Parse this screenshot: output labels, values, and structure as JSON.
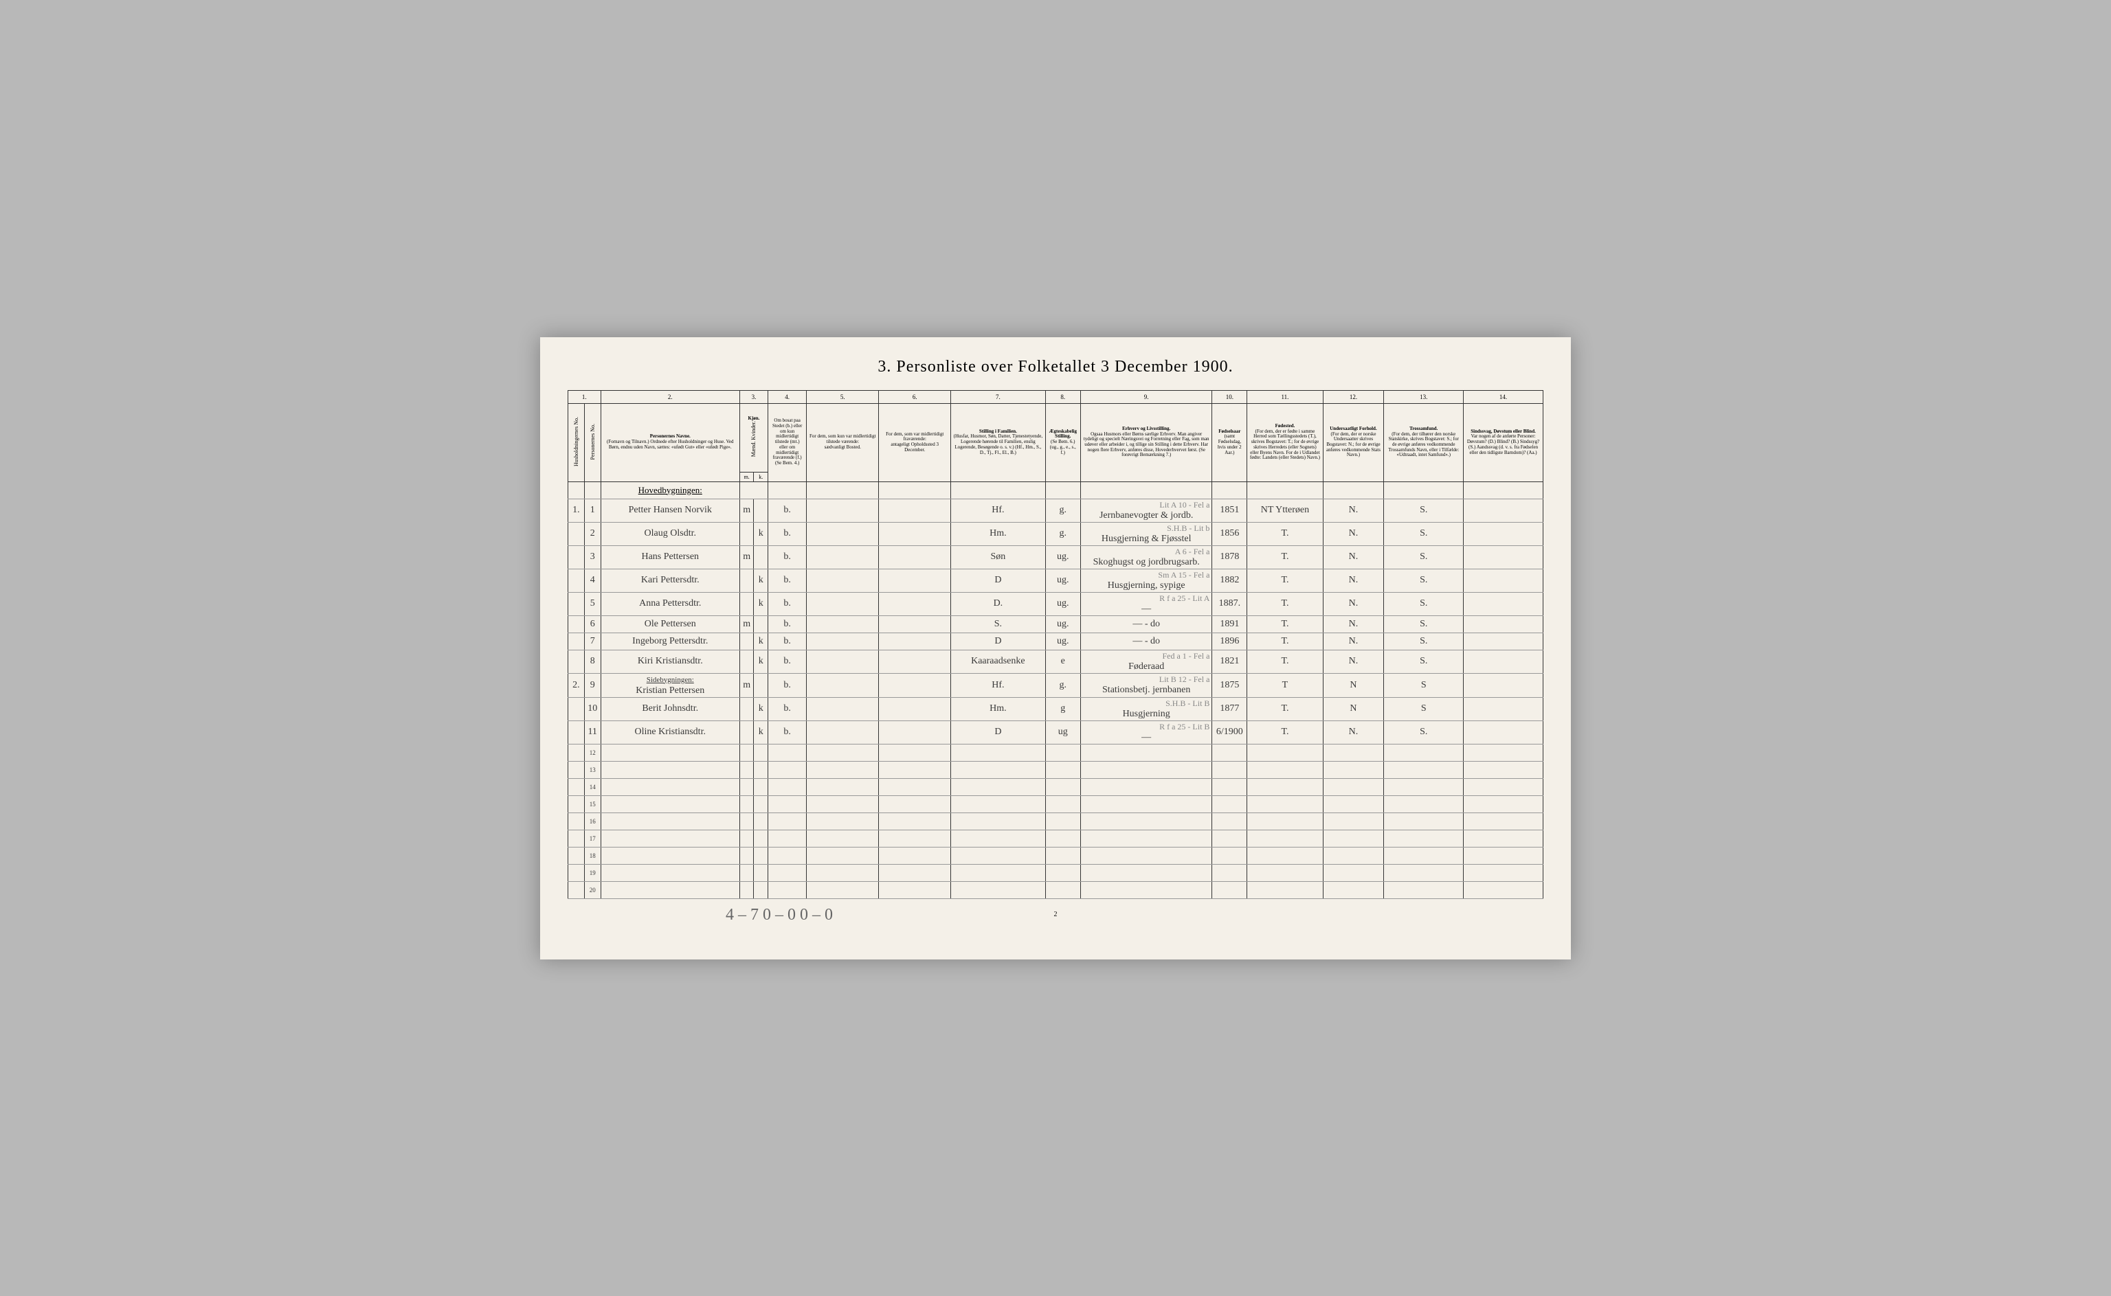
{
  "title": "3. Personliste over Folketallet 3 December 1900.",
  "colnums": [
    "1.",
    "2.",
    "3.",
    "4.",
    "5.",
    "6.",
    "7.",
    "8.",
    "9.",
    "10.",
    "11.",
    "12.",
    "13.",
    "14."
  ],
  "headers": {
    "hushold": "Husholdningernes No.",
    "person_no": "Personernes No.",
    "navn": "Personernes Navne.",
    "navn_sub": "(Fornavn og Tilnavn.)\nOrdnede efter Husholdninger og Huse.\nVed Børn, endnu uden Navn, sættes: «ufødt Gut» eller «ufødt Pige».",
    "kjon": "Kjøn.",
    "kjon_sub": "Mænd. Kvinder.",
    "mk_m": "m.",
    "mk_k": "k.",
    "bosat": "Om bosat paa Stedet (b.) eller om kun midlertidigt tilstede (mt.) eller om midlertidigt fraværende (f.)",
    "bosat_sub": "(Se Bem. 4.)",
    "midl_tilstede": "For dem, som kun var midlertidigt tilstede værende:",
    "midl_tilstede_sub": "sædvanligt Bosted.",
    "midl_frav": "For dem, som var midlertidigt fraværende:",
    "midl_frav_sub": "antageligt Opholdssted 3 December.",
    "stilling_fam": "Stilling i Familien.",
    "stilling_fam_sub": "(Husfar, Husmor, Søn, Datter, Tjenestetyende, Logerende hørende til Familien, enslig Logerende, Besøgende o. s. v.)\n(Hf., Hm., S., D., Tj., Fl., El., B.)",
    "egte": "Ægteskabelig Stilling.",
    "egte_sub": "(Se Bem. 6.) (ug., g., e., s., f.)",
    "erhverv": "Erhverv og Livsstilling.",
    "erhverv_sub": "Ogsaa Husmors eller Børns særlige Erhverv. Man angiver tydeligt og specielt Næringsvei og Forretning eller Fag, som man udøver eller arbeider i, og tillige sin Stilling i dette Erhverv. Har nogen flere Erhverv, anføres disse, Hovederhvervet først.\n(Se forøvrigt Bemærkning 7.)",
    "fodsel": "Fødselsaar",
    "fodsel_sub": "(samt Fødselsdag, hvis under 2 Aar.)",
    "fodested": "Fødested.",
    "fodested_sub": "(For dem, der er fødte i samme Herred som Tællingsstedets (T.), skrives Bogstavet: T.; for de øvrige skrives Herredets (eller Sognets) eller Byens Navn. For de i Udlandet fødte: Landets (eller Stedets) Navn.)",
    "under": "Undersaatligt Forhold.",
    "under_sub": "(For dem, der er norske Undersaatter skrives Bogstavet: N.; for de øvrige anføres vedkommende Stats Navn.)",
    "tros": "Trossamfund.",
    "tros_sub": "(For dem, der tilhører den norske Statskirke, skrives Bogstavet: S.; for de øvrige anføres vedkommende Trossamfunds Navn, eller i Tilfælde: «Udtraadt, intet Samfund».)",
    "sinds": "Sindssvag, Døvstum eller Blind.",
    "sinds_sub": "Var nogen af de anførte Personer: Døvstum? (D.) Blind? (B.) Sindssyg? (S.) Aandssvag (d. v. s. fra Fødselen eller den tidligste Barndom)? (Aa.)"
  },
  "building1": "Hovedbygningen:",
  "building2": "Sidebygningen:",
  "rows": [
    {
      "hh": "1.",
      "pn": "1",
      "name": "Petter Hansen Norvik",
      "mk": "m",
      "b": "b.",
      "fam": "Hf.",
      "eg": "g.",
      "erh": "Jernbanevogter & jordb.",
      "note": "Lit A 10 - Fel a",
      "aar": "1851",
      "sted": "NT Ytterøen",
      "un": "N.",
      "tr": "S."
    },
    {
      "hh": "",
      "pn": "2",
      "name": "Olaug Olsdtr.",
      "mk": "k",
      "b": "b.",
      "fam": "Hm.",
      "eg": "g.",
      "erh": "Husgjerning & Fjøsstel",
      "note": "S.H.B - Lit b",
      "aar": "1856",
      "sted": "T.",
      "un": "N.",
      "tr": "S."
    },
    {
      "hh": "",
      "pn": "3",
      "name": "Hans Pettersen",
      "mk": "m",
      "b": "b.",
      "fam": "Søn",
      "eg": "ug.",
      "erh": "Skoghugst og jordbrugsarb.",
      "note": "A 6 - Fel a",
      "aar": "1878",
      "sted": "T.",
      "un": "N.",
      "tr": "S."
    },
    {
      "hh": "",
      "pn": "4",
      "name": "Kari Pettersdtr.",
      "mk": "k",
      "b": "b.",
      "fam": "D",
      "eg": "ug.",
      "erh": "Husgjerning, sypige",
      "note": "Sm A 15 - Fel a",
      "aar": "1882",
      "sted": "T.",
      "un": "N.",
      "tr": "S."
    },
    {
      "hh": "",
      "pn": "5",
      "name": "Anna Pettersdtr.",
      "mk": "k",
      "b": "b.",
      "fam": "D.",
      "eg": "ug.",
      "erh": "—",
      "note": "R f a 25 - Lit A",
      "aar": "1887.",
      "sted": "T.",
      "un": "N.",
      "tr": "S."
    },
    {
      "hh": "",
      "pn": "6",
      "name": "Ole Pettersen",
      "mk": "m",
      "b": "b.",
      "fam": "S.",
      "eg": "ug.",
      "erh": "—     - do",
      "note": "",
      "aar": "1891",
      "sted": "T.",
      "un": "N.",
      "tr": "S."
    },
    {
      "hh": "",
      "pn": "7",
      "name": "Ingeborg Pettersdtr.",
      "mk": "k",
      "b": "b.",
      "fam": "D",
      "eg": "ug.",
      "erh": "—     - do",
      "note": "",
      "aar": "1896",
      "sted": "T.",
      "un": "N.",
      "tr": "S."
    },
    {
      "hh": "",
      "pn": "8",
      "name": "Kiri Kristiansdtr.",
      "mk": "k",
      "b": "b.",
      "fam": "Kaaraadsenke",
      "eg": "e",
      "erh": "Føderaad",
      "note": "Fed a 1 - Fel a",
      "aar": "1821",
      "sted": "T.",
      "un": "N.",
      "tr": "S."
    },
    {
      "hh": "2.",
      "pn": "9",
      "name": "Kristian Pettersen",
      "mk": "m",
      "b": "b.",
      "fam": "Hf.",
      "eg": "g.",
      "erh": "Stationsbetj. jernbanen",
      "note": "Lit B 12 - Fel a",
      "aar": "1875",
      "sted": "T",
      "un": "N",
      "tr": "S"
    },
    {
      "hh": "",
      "pn": "10",
      "name": "Berit Johnsdtr.",
      "mk": "k",
      "b": "b.",
      "fam": "Hm.",
      "eg": "g",
      "erh": "Husgjerning",
      "note": "S.H.B - Lit B",
      "aar": "1877",
      "sted": "T.",
      "un": "N",
      "tr": "S"
    },
    {
      "hh": "",
      "pn": "11",
      "name": "Oline Kristiansdtr.",
      "mk": "k",
      "b": "b.",
      "fam": "D",
      "eg": "ug",
      "erh": "—",
      "note": "R f a 25 - Lit B",
      "aar": "6/1900",
      "sted": "T.",
      "un": "N.",
      "tr": "S."
    }
  ],
  "bottom": "4 – 7   0 – 0   0 – 0",
  "page_num": "2"
}
